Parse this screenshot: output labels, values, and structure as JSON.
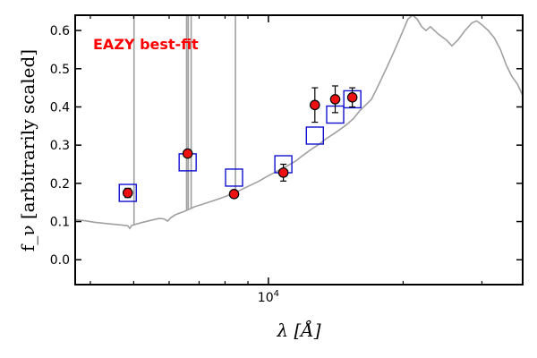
{
  "chart_data": {
    "type": "scatter",
    "title": "",
    "xlabel": "λ [Å]",
    "ylabel": "f_ν [arbitrarily scaled]",
    "xscale": "log",
    "xlim": [
      3700,
      37000
    ],
    "ylim": [
      -0.065,
      0.64
    ],
    "x_ticks": [
      {
        "value": 10000,
        "label": "10^4"
      }
    ],
    "y_ticks": [
      0.0,
      0.1,
      0.2,
      0.3,
      0.4,
      0.5,
      0.6
    ],
    "annotation": {
      "text": "EAZY best-fit",
      "color": "#ff0000"
    },
    "colors": {
      "template": "#a0a0a0",
      "model_box": "#1010d0",
      "observed": "#ee1111",
      "errorbar": "#000000"
    },
    "template_spectrum": [
      [
        3700,
        0.105
      ],
      [
        3900,
        0.102
      ],
      [
        4100,
        0.098
      ],
      [
        4400,
        0.094
      ],
      [
        4700,
        0.091
      ],
      [
        4850,
        0.089
      ],
      [
        4900,
        0.082
      ],
      [
        4950,
        0.09
      ],
      [
        5200,
        0.097
      ],
      [
        5500,
        0.104
      ],
      [
        5700,
        0.108
      ],
      [
        5850,
        0.107
      ],
      [
        5950,
        0.101
      ],
      [
        6050,
        0.11
      ],
      [
        6200,
        0.118
      ],
      [
        6500,
        0.127
      ],
      [
        6850,
        0.139
      ],
      [
        7200,
        0.147
      ],
      [
        7600,
        0.156
      ],
      [
        8000,
        0.165
      ],
      [
        8500,
        0.178
      ],
      [
        9000,
        0.192
      ],
      [
        9500,
        0.205
      ],
      [
        10000,
        0.22
      ],
      [
        10500,
        0.233
      ],
      [
        11000,
        0.245
      ],
      [
        11500,
        0.258
      ],
      [
        12000,
        0.275
      ],
      [
        12500,
        0.29
      ],
      [
        13000,
        0.303
      ],
      [
        13500,
        0.318
      ],
      [
        14000,
        0.33
      ],
      [
        14500,
        0.342
      ],
      [
        15000,
        0.355
      ],
      [
        15500,
        0.37
      ],
      [
        16000,
        0.39
      ],
      [
        16500,
        0.405
      ],
      [
        17000,
        0.42
      ],
      [
        17500,
        0.45
      ],
      [
        18000,
        0.48
      ],
      [
        18500,
        0.51
      ],
      [
        19000,
        0.54
      ],
      [
        19500,
        0.57
      ],
      [
        20000,
        0.6
      ],
      [
        20500,
        0.63
      ],
      [
        21000,
        0.64
      ],
      [
        21500,
        0.63
      ],
      [
        22000,
        0.61
      ],
      [
        22500,
        0.6
      ],
      [
        23000,
        0.61
      ],
      [
        23500,
        0.6
      ],
      [
        24000,
        0.59
      ],
      [
        25000,
        0.575
      ],
      [
        25700,
        0.56
      ],
      [
        26500,
        0.575
      ],
      [
        27500,
        0.6
      ],
      [
        28500,
        0.62
      ],
      [
        29200,
        0.625
      ],
      [
        30000,
        0.615
      ],
      [
        31000,
        0.6
      ],
      [
        32000,
        0.58
      ],
      [
        33000,
        0.55
      ],
      [
        34000,
        0.51
      ],
      [
        35000,
        0.48
      ],
      [
        36000,
        0.46
      ],
      [
        37000,
        0.43
      ]
    ],
    "emission_lines": [
      {
        "x": 5008,
        "y": 0.64
      },
      {
        "x": 6564,
        "y": 0.64
      },
      {
        "x": 6620,
        "y": 0.64
      },
      {
        "x": 6720,
        "y": 0.64
      },
      {
        "x": 8440,
        "y": 0.64
      }
    ],
    "model_photometry": [
      {
        "x": 4850,
        "y": 0.175
      },
      {
        "x": 6600,
        "y": 0.255
      },
      {
        "x": 8380,
        "y": 0.215
      },
      {
        "x": 10800,
        "y": 0.25
      },
      {
        "x": 12700,
        "y": 0.325
      },
      {
        "x": 14100,
        "y": 0.38
      },
      {
        "x": 15400,
        "y": 0.42
      }
    ],
    "observed_photometry": [
      {
        "x": 4850,
        "y": 0.175,
        "err": 0.012
      },
      {
        "x": 6600,
        "y": 0.278,
        "err": 0.008
      },
      {
        "x": 8380,
        "y": 0.172,
        "err": 0.01
      },
      {
        "x": 10800,
        "y": 0.228,
        "err": 0.022
      },
      {
        "x": 12700,
        "y": 0.405,
        "err": 0.045
      },
      {
        "x": 14100,
        "y": 0.42,
        "err": 0.035
      },
      {
        "x": 15400,
        "y": 0.425,
        "err": 0.025
      }
    ]
  }
}
